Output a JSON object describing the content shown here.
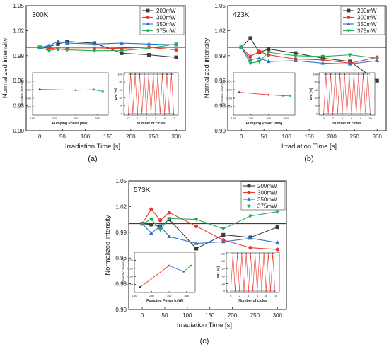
{
  "chart_data": [
    {
      "id": "a",
      "type": "line",
      "temperature_label": "300K",
      "panel_label": "(a)",
      "xlabel": "Irradiation Time [s]",
      "ylabel": "Normalized intensity",
      "xlim": [
        -30,
        320
      ],
      "ylim": [
        0.9,
        1.05
      ],
      "xticks": [
        "0",
        "50",
        "100",
        "150",
        "200",
        "250",
        "300"
      ],
      "yticks": [
        "0.90",
        "0.93",
        "0.96",
        "0.99",
        "1.02",
        "1.05"
      ],
      "reference_line": 1.0,
      "legend_position": "top-right",
      "series": [
        {
          "name": "200mW",
          "color": "#3a3a3a",
          "marker": "square",
          "x": [
            0,
            20,
            40,
            60,
            120,
            180,
            240,
            300
          ],
          "y": [
            1.0,
            1.001,
            1.004,
            1.007,
            1.005,
            0.993,
            0.991,
            0.988
          ]
        },
        {
          "name": "300mW",
          "color": "#e8382d",
          "marker": "circle",
          "x": [
            0,
            20,
            40,
            60,
            120,
            180,
            240,
            300
          ],
          "y": [
            1.0,
            0.999,
            0.998,
            0.998,
            0.998,
            0.999,
            1.0,
            0.997
          ]
        },
        {
          "name": "350mW",
          "color": "#2a76c8",
          "marker": "triangle",
          "x": [
            0,
            20,
            40,
            60,
            120,
            180,
            240,
            300
          ],
          "y": [
            1.0,
            1.002,
            1.007,
            1.005,
            1.004,
            1.005,
            1.004,
            1.003
          ]
        },
        {
          "name": "375mW",
          "color": "#22ad58",
          "marker": "triangle-down",
          "x": [
            0,
            20,
            40,
            60,
            120,
            180,
            240,
            300
          ],
          "y": [
            1.0,
            0.996,
            0.998,
            0.997,
            0.996,
            0.996,
            0.999,
            1.004
          ]
        }
      ],
      "inset_power": {
        "xlabel": "Pumping Power [mW]",
        "ylabel": "Normalized intensity",
        "xlim": [
          180,
          390
        ],
        "ylim": [
          0.9,
          1.05
        ],
        "xticks": [
          "180",
          "240",
          "300",
          "360"
        ],
        "yticks": [
          "0.93",
          "0.96",
          "0.99",
          "1.02"
        ],
        "points": [
          {
            "x": 200,
            "y": 0.991,
            "color": "#3a3a3a"
          },
          {
            "x": 300,
            "y": 0.988,
            "color": "#e8382d"
          },
          {
            "x": 350,
            "y": 0.99,
            "color": "#2a76c8"
          },
          {
            "x": 375,
            "y": 0.984,
            "color": "#22ad58"
          }
        ]
      },
      "inset_cycles": {
        "xlabel": "Number of cicles",
        "ylabel": "ΔRr [%]",
        "xlim": [
          -1,
          11
        ],
        "ylim": [
          0,
          100
        ],
        "xticks": [
          "0",
          "2",
          "4",
          "6",
          "8",
          "10"
        ],
        "yticks": [
          "0",
          "20",
          "40",
          "60",
          "80",
          "100"
        ],
        "cycles": 10,
        "high": 100,
        "low": 0
      }
    },
    {
      "id": "b",
      "type": "line",
      "temperature_label": "423K",
      "panel_label": "(b)",
      "xlabel": "Irradiation Time [s]",
      "ylabel": "Normalized intensity",
      "xlim": [
        -30,
        320
      ],
      "ylim": [
        0.9,
        1.05
      ],
      "xticks": [
        "0",
        "50",
        "100",
        "150",
        "200",
        "250",
        "300"
      ],
      "yticks": [
        "0.90",
        "0.93",
        "0.96",
        "0.99",
        "1.02",
        "1.05"
      ],
      "reference_line": 1.0,
      "legend_position": "top-right",
      "series": [
        {
          "name": "200mW",
          "color": "#3a3a3a",
          "marker": "square",
          "x": [
            0,
            20,
            40,
            60,
            120,
            180,
            240,
            300
          ],
          "y": [
            1.0,
            1.011,
            0.994,
            0.998,
            0.993,
            0.987,
            0.983,
            0.96
          ]
        },
        {
          "name": "300mW",
          "color": "#e8382d",
          "marker": "circle",
          "x": [
            0,
            20,
            40,
            60,
            120,
            180,
            240,
            300
          ],
          "y": [
            1.0,
            0.989,
            0.995,
            0.991,
            0.986,
            0.985,
            0.981,
            0.988
          ]
        },
        {
          "name": "350mW",
          "color": "#2a76c8",
          "marker": "triangle",
          "x": [
            0,
            20,
            40,
            60,
            120,
            180,
            240,
            300
          ],
          "y": [
            1.0,
            0.985,
            0.987,
            0.983,
            0.984,
            0.981,
            0.98,
            0.984
          ]
        },
        {
          "name": "375mW",
          "color": "#22ad58",
          "marker": "triangle-down",
          "x": [
            0,
            20,
            40,
            60,
            120,
            180,
            240,
            300
          ],
          "y": [
            1.0,
            0.981,
            0.983,
            0.994,
            0.99,
            0.989,
            0.991,
            0.987
          ]
        }
      ],
      "inset_power": {
        "xlabel": "Pumping Power [mW]",
        "ylabel": "Normalized intensity",
        "xlim": [
          180,
          390
        ],
        "ylim": [
          0.9,
          1.05
        ],
        "xticks": [
          "180",
          "240",
          "300",
          "360"
        ],
        "yticks": [
          "0.93",
          "0.96",
          "0.99",
          "1.02"
        ],
        "points": [
          {
            "x": 200,
            "y": 0.981,
            "color": "#3a3a3a"
          },
          {
            "x": 300,
            "y": 0.972,
            "color": "#e8382d"
          },
          {
            "x": 350,
            "y": 0.969,
            "color": "#2a76c8"
          },
          {
            "x": 375,
            "y": 0.968,
            "color": "#22ad58"
          }
        ]
      },
      "inset_cycles": {
        "xlabel": "Number of cicles",
        "ylabel": "ΔRr [%]",
        "xlim": [
          -1,
          11
        ],
        "ylim": [
          0,
          100
        ],
        "xticks": [
          "0",
          "2",
          "4",
          "6",
          "8",
          "10"
        ],
        "yticks": [
          "0",
          "20",
          "40",
          "60",
          "80",
          "100"
        ],
        "cycles": 10,
        "high": 100,
        "low": 0
      }
    },
    {
      "id": "c",
      "type": "line",
      "temperature_label": "573K",
      "panel_label": "(c)",
      "xlabel": "Irradiation Time [s]",
      "ylabel": "Normalized intensity",
      "xlim": [
        -30,
        320
      ],
      "ylim": [
        0.9,
        1.05
      ],
      "xticks": [
        "0",
        "50",
        "100",
        "150",
        "200",
        "250",
        "300"
      ],
      "yticks": [
        "0.90",
        "0.93",
        "0.96",
        "0.99",
        "1.02",
        "1.05"
      ],
      "reference_line": 1.0,
      "legend_position": "top-right",
      "series": [
        {
          "name": "200mW",
          "color": "#3a3a3a",
          "marker": "square",
          "x": [
            0,
            20,
            40,
            60,
            120,
            180,
            240,
            300
          ],
          "y": [
            1.0,
            0.999,
            0.997,
            1.005,
            0.971,
            0.987,
            0.984,
            0.996
          ]
        },
        {
          "name": "300mW",
          "color": "#e8382d",
          "marker": "circle",
          "x": [
            0,
            20,
            40,
            60,
            120,
            180,
            240,
            300
          ],
          "y": [
            1.0,
            1.017,
            1.004,
            1.013,
            0.997,
            0.981,
            0.972,
            0.97
          ]
        },
        {
          "name": "350mW",
          "color": "#2a76c8",
          "marker": "triangle",
          "x": [
            0,
            20,
            40,
            60,
            120,
            180,
            240,
            300
          ],
          "y": [
            1.0,
            0.989,
            0.997,
            0.985,
            0.977,
            0.979,
            0.983,
            0.978
          ]
        },
        {
          "name": "375mW",
          "color": "#22ad58",
          "marker": "triangle-down",
          "x": [
            0,
            20,
            40,
            60,
            120,
            180,
            240,
            300
          ],
          "y": [
            1.0,
            1.005,
            0.993,
            1.006,
            1.005,
            0.994,
            1.009,
            1.014
          ]
        }
      ],
      "inset_power": {
        "xlabel": "Pumping Power [mW]",
        "ylabel": "Normalized intensity",
        "xlim": [
          180,
          390
        ],
        "ylim": [
          0.9,
          1.05
        ],
        "xticks": [
          "180",
          "240",
          "300",
          "360"
        ],
        "yticks": [
          "0.93",
          "0.96",
          "0.99",
          "1.02"
        ],
        "points": [
          {
            "x": 200,
            "y": 0.92,
            "color": "#3a3a3a"
          },
          {
            "x": 300,
            "y": 1.0,
            "color": "#e8382d"
          },
          {
            "x": 350,
            "y": 0.978,
            "color": "#2a76c8"
          },
          {
            "x": 375,
            "y": 1.0,
            "color": "#22ad58"
          }
        ]
      },
      "inset_cycles": {
        "xlabel": "Number of cicles",
        "ylabel": "ΔRr [%]",
        "xlim": [
          -1,
          11
        ],
        "ylim": [
          0,
          100
        ],
        "xticks": [
          "0",
          "2",
          "4",
          "6",
          "8",
          "10"
        ],
        "yticks": [
          "0",
          "20",
          "40",
          "60",
          "80",
          "100"
        ],
        "cycles": 10,
        "high": 100,
        "low": 0
      }
    }
  ]
}
